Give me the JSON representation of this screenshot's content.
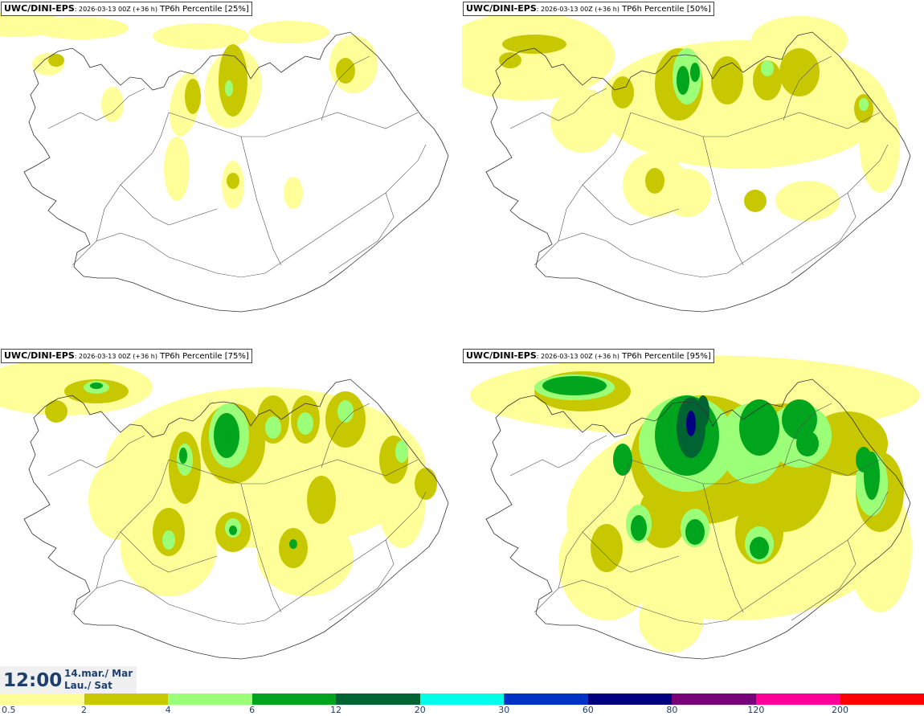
{
  "panels": [
    {
      "model": "UWC/DINI-EPS",
      "run": ": 2026-03-13 00Z (+36 h)",
      "field": "TP6h Percentile [25%]"
    },
    {
      "model": "UWC/DINI-EPS",
      "run": ": 2026-03-13 00Z (+36 h)",
      "field": "TP6h Percentile [50%]"
    },
    {
      "model": "UWC/DINI-EPS",
      "run": ": 2026-03-13 00Z (+36 h)",
      "field": "TP6h Percentile [75%]"
    },
    {
      "model": "UWC/DINI-EPS",
      "run": ": 2026-03-13 00Z (+36 h)",
      "field": "TP6h Percentile [95%]"
    }
  ],
  "valid_time": {
    "time": "12:00",
    "date": "14.mar./ Mar",
    "day": "Lau./ Sat"
  },
  "colorbar": {
    "labels": [
      "0.5",
      "2",
      "4",
      "6",
      "12",
      "20",
      "30",
      "60",
      "80",
      "120",
      "200"
    ],
    "colors": [
      "#ffff99",
      "#c8c800",
      "#9cff78",
      "#00a51e",
      "#006432",
      "#00ffe6",
      "#0032c8",
      "#000080",
      "#780078",
      "#ff0096",
      "#ff0000"
    ]
  }
}
